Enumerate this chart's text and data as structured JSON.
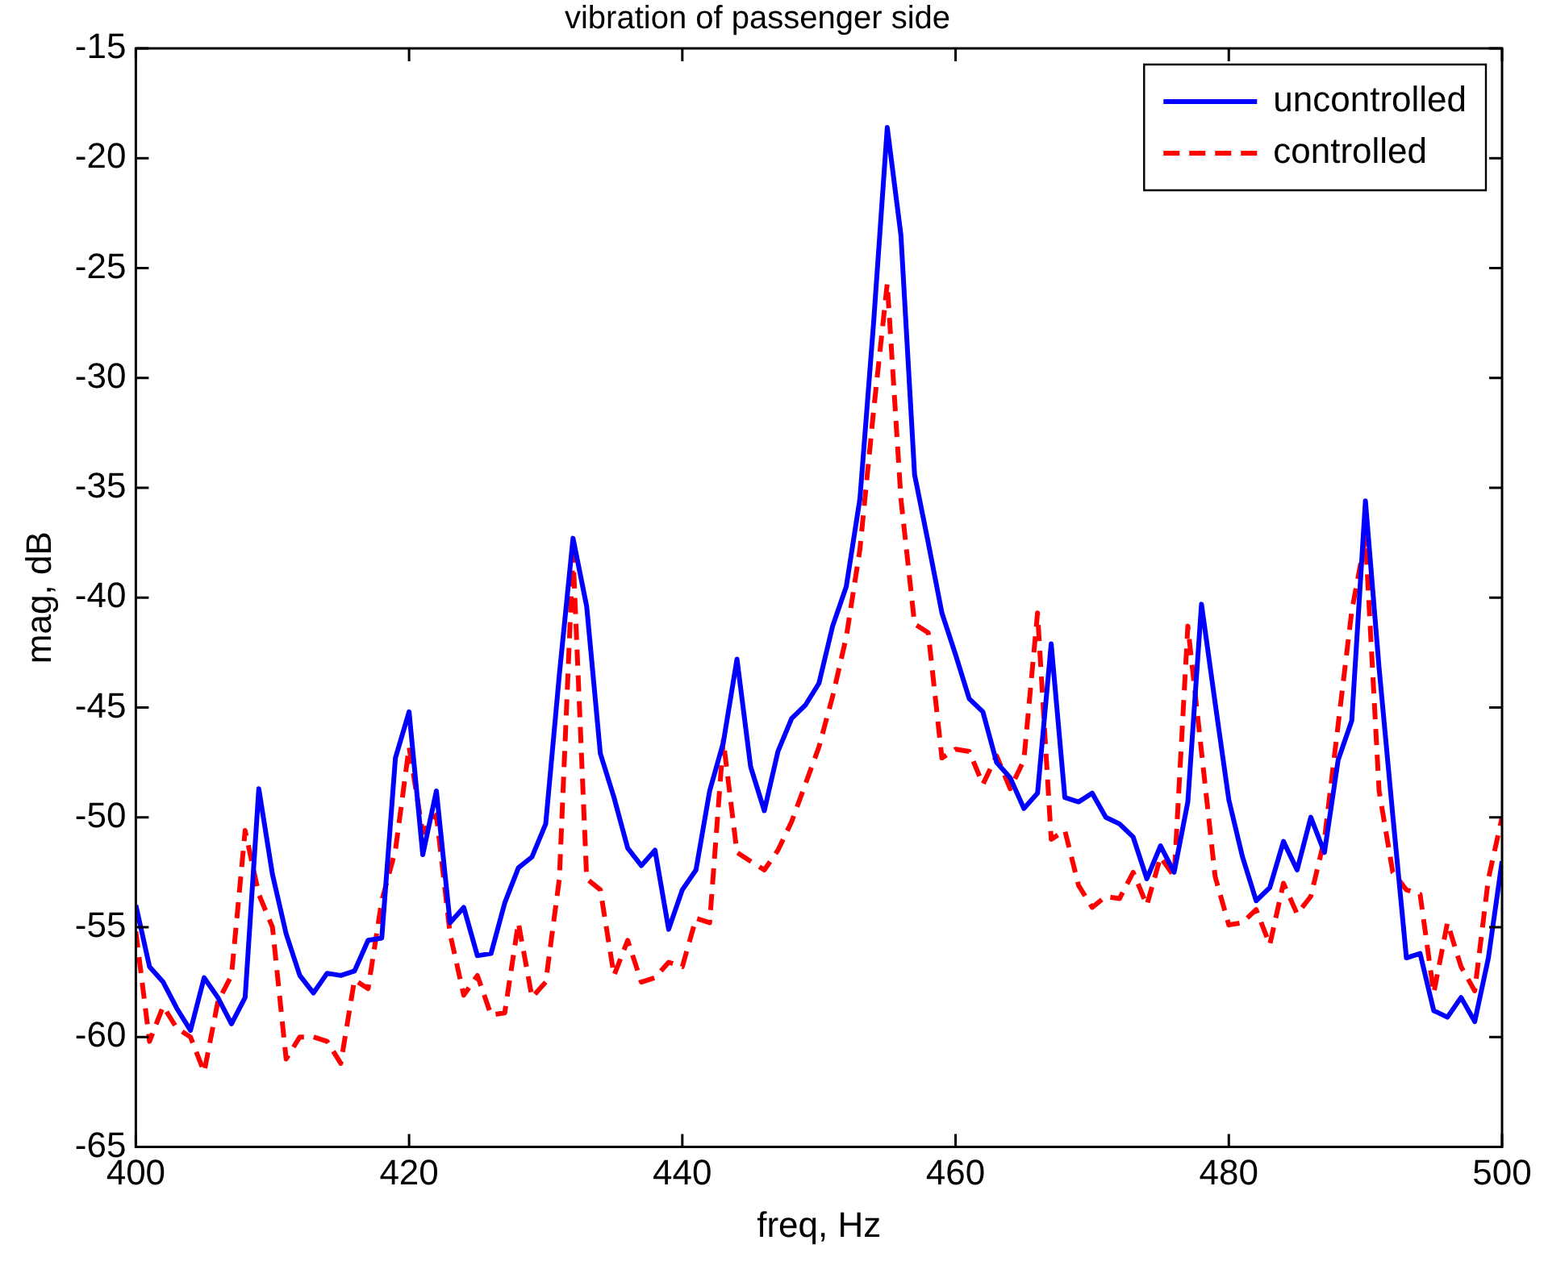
{
  "chart_data": {
    "type": "line",
    "title": "vibration of passenger side",
    "xlabel": "freq, Hz",
    "ylabel": "mag, dB",
    "x": [
      400,
      401,
      402,
      403,
      404,
      405,
      406,
      407,
      408,
      409,
      410,
      411,
      412,
      413,
      414,
      415,
      416,
      417,
      418,
      419,
      420,
      421,
      422,
      423,
      424,
      425,
      426,
      427,
      428,
      429,
      430,
      431,
      432,
      433,
      434,
      435,
      436,
      437,
      438,
      439,
      440,
      441,
      442,
      443,
      444,
      445,
      446,
      447,
      448,
      449,
      450,
      451,
      452,
      453,
      454,
      455,
      456,
      457,
      458,
      459,
      460,
      461,
      462,
      463,
      464,
      465,
      466,
      467,
      468,
      469,
      470,
      471,
      472,
      473,
      474,
      475,
      476,
      477,
      478,
      479,
      480,
      481,
      482,
      483,
      484,
      485,
      486,
      487,
      488,
      489,
      490,
      491,
      492,
      493,
      494,
      495,
      496,
      497,
      498,
      499,
      500
    ],
    "series": [
      {
        "name": "uncontrolled",
        "color": "#0000ff",
        "line_style": "solid",
        "values": [
          -54,
          -56.8,
          -57.5,
          -58.7,
          -59.7,
          -57.3,
          -58.2,
          -59.4,
          -58.2,
          -48.7,
          -52.6,
          -55.3,
          -57.2,
          -58,
          -57.1,
          -57.2,
          -57,
          -55.6,
          -55.5,
          -47.3,
          -45.2,
          -51.7,
          -48.8,
          -54.8,
          -54.1,
          -56.3,
          -56.2,
          -53.9,
          -52.3,
          -51.8,
          -50.3,
          -43.5,
          -37.3,
          -40.4,
          -47.1,
          -49.1,
          -51.4,
          -52.2,
          -51.5,
          -55.1,
          -53.3,
          -52.4,
          -48.8,
          -46.6,
          -42.8,
          -47.7,
          -49.7,
          -47,
          -45.5,
          -44.9,
          -43.9,
          -41.3,
          -39.5,
          -35.5,
          -27.5,
          -18.6,
          -23.5,
          -34.4,
          -37.5,
          -40.7,
          -42.6,
          -44.6,
          -45.2,
          -47.5,
          -48.2,
          -49.6,
          -48.9,
          -42.1,
          -49.1,
          -49.3,
          -48.9,
          -50,
          -50.3,
          -50.9,
          -52.8,
          -51.3,
          -52.5,
          -49.3,
          -40.3,
          -44.8,
          -49.2,
          -51.8,
          -53.8,
          -53.2,
          -51.1,
          -52.4,
          -50,
          -51.6,
          -47.4,
          -45.6,
          -35.6,
          -43.2,
          -49.9,
          -56.4,
          -56.2,
          -58.8,
          -59.1,
          -58.2,
          -59.3,
          -56.4,
          -52
        ]
      },
      {
        "name": "controlled",
        "color": "#ff0000",
        "line_style": "dashed",
        "values": [
          -55.2,
          -60.2,
          -58.6,
          -59.6,
          -60,
          -61.6,
          -58.4,
          -57.2,
          -50.6,
          -53.5,
          -55,
          -61,
          -60,
          -60,
          -60.2,
          -61.2,
          -57.4,
          -57.8,
          -53.8,
          -51.5,
          -46.8,
          -50.7,
          -49.9,
          -55.3,
          -58.1,
          -57.2,
          -59,
          -58.9,
          -54.8,
          -58.2,
          -57.5,
          -52.8,
          -38,
          -52.8,
          -53.3,
          -57.2,
          -55.6,
          -57.5,
          -57.3,
          -56.6,
          -56.8,
          -54.6,
          -54.8,
          -46.5,
          -51.6,
          -52,
          -52.4,
          -51.5,
          -50.2,
          -48.5,
          -46.8,
          -44.5,
          -41.8,
          -37.8,
          -31.5,
          -25.7,
          -35.5,
          -41.2,
          -41.6,
          -47.3,
          -46.9,
          -47,
          -48.5,
          -47.2,
          -48.7,
          -47.4,
          -40.7,
          -51,
          -50.6,
          -53.1,
          -54.1,
          -53.6,
          -53.7,
          -52.5,
          -54,
          -51.8,
          -52.7,
          -41.3,
          -47,
          -52.7,
          -54.9,
          -54.8,
          -54.2,
          -55.8,
          -53,
          -54.4,
          -53.6,
          -51,
          -45.8,
          -40.6,
          -37.3,
          -48.8,
          -52.5,
          -53.3,
          -53.5,
          -58,
          -54.8,
          -56.8,
          -57.9,
          -52.8,
          -50
        ]
      }
    ],
    "xlim": [
      400,
      500
    ],
    "xticks": [
      400,
      420,
      440,
      460,
      480,
      500
    ],
    "ylim": [
      -65,
      -15
    ],
    "yticks": [
      -65,
      -60,
      -55,
      -50,
      -45,
      -40,
      -35,
      -30,
      -25,
      -20,
      -15
    ],
    "grid": false,
    "legend": "top right",
    "marker": "none"
  }
}
